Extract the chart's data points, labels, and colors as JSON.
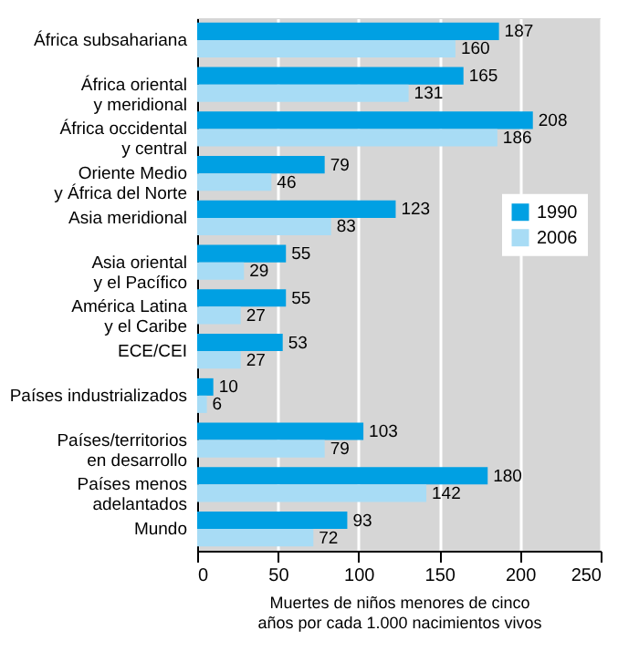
{
  "chart_data": {
    "type": "bar",
    "orientation": "horizontal",
    "categories": [
      "África subsahariana",
      "África oriental\ny meridional",
      "África occidental\ny central",
      "Oriente Medio\ny África del Norte",
      "Asia meridional",
      "Asia oriental\ny el Pacífico",
      "América Latina\ny el Caribe",
      "ECE/CEI",
      "Países industrializados",
      "Países/territorios\nen desarrollo",
      "Países menos\nadelantados",
      "Mundo"
    ],
    "series": [
      {
        "name": "1990",
        "color": "#00a0e3",
        "values": [
          187,
          165,
          208,
          79,
          123,
          55,
          55,
          53,
          10,
          103,
          180,
          93
        ]
      },
      {
        "name": "2006",
        "color": "#a8dcf5",
        "values": [
          160,
          131,
          186,
          46,
          83,
          29,
          27,
          27,
          6,
          79,
          142,
          72
        ]
      }
    ],
    "xlabel": "Muertes de niños menores de cinco\naños por cada 1.000 nacimientos vivos",
    "xlim": [
      0,
      250
    ],
    "xticks": [
      0,
      50,
      100,
      150,
      200,
      250
    ],
    "grid": "x",
    "legend": "right",
    "data_labels": true
  }
}
